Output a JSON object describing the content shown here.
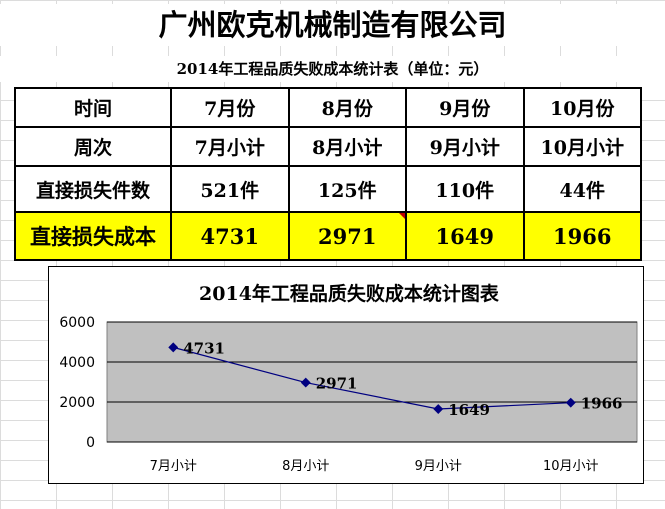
{
  "header": {
    "company": "广州欧克机械制造有限公司",
    "subtitle": "2014年工程品质失败成本统计表（单位：元）"
  },
  "table": {
    "rows": [
      {
        "label": "时间",
        "cells": [
          "7月份",
          "8月份",
          "9月份",
          "10月份"
        ]
      },
      {
        "label": "周次",
        "cells": [
          "7月小计",
          "8月小计",
          "9月小计",
          "10月小计"
        ]
      },
      {
        "label": "直接损失件数",
        "cells": [
          "521件",
          "125件",
          "110件",
          "44件"
        ]
      },
      {
        "label": "直接损失成本",
        "cells": [
          "4731",
          "2971",
          "1649",
          "1966"
        ]
      }
    ],
    "highlight_color": "#ffff00"
  },
  "chart_data": {
    "type": "line",
    "title": "2014年工程品质失败成本统计图表",
    "categories": [
      "7月小计",
      "8月小计",
      "9月小计",
      "10月小计"
    ],
    "series": [
      {
        "values": [
          4731,
          2971,
          1649,
          1966
        ],
        "color": "#000080"
      }
    ],
    "ylim": [
      0,
      6000
    ],
    "yticks": [
      "0",
      "2000",
      "4000",
      "6000"
    ],
    "data_labels": [
      "4731",
      "2971",
      "1649",
      "1966"
    ],
    "grid": true,
    "plot_background": "#c0c0c0",
    "legend": "none"
  }
}
